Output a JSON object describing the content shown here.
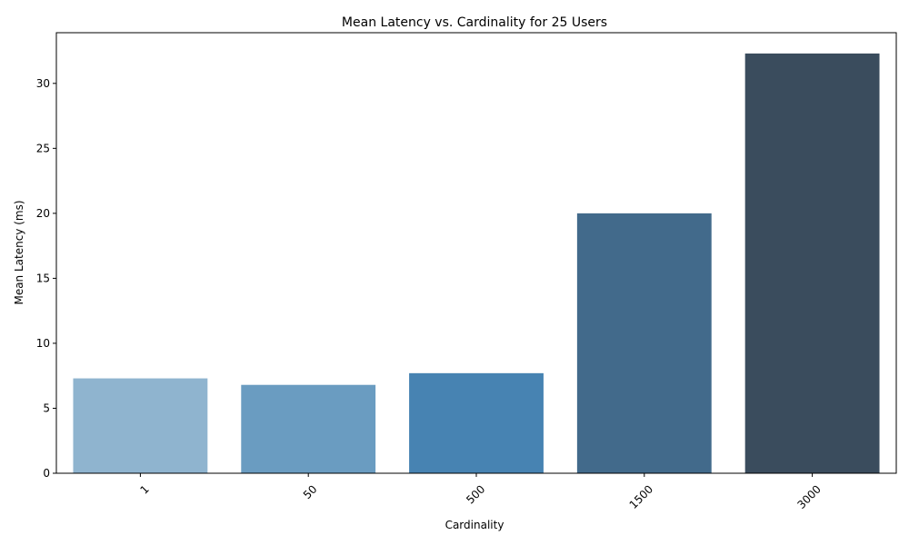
{
  "chart_data": {
    "type": "bar",
    "title": "Mean Latency vs. Cardinality for 25 Users",
    "xlabel": "Cardinality",
    "ylabel": "Mean Latency (ms)",
    "categories": [
      "1",
      "50",
      "500",
      "1500",
      "3000"
    ],
    "values": [
      7.3,
      6.8,
      7.7,
      20.0,
      32.3
    ],
    "colors": [
      "#8fb4cf",
      "#6a9cc1",
      "#4783b2",
      "#426a8b",
      "#3a4c5d"
    ],
    "ylim": [
      0,
      33.9
    ],
    "yticks": [
      0,
      5,
      10,
      15,
      20,
      25,
      30
    ],
    "grid": false,
    "legend": "none"
  }
}
